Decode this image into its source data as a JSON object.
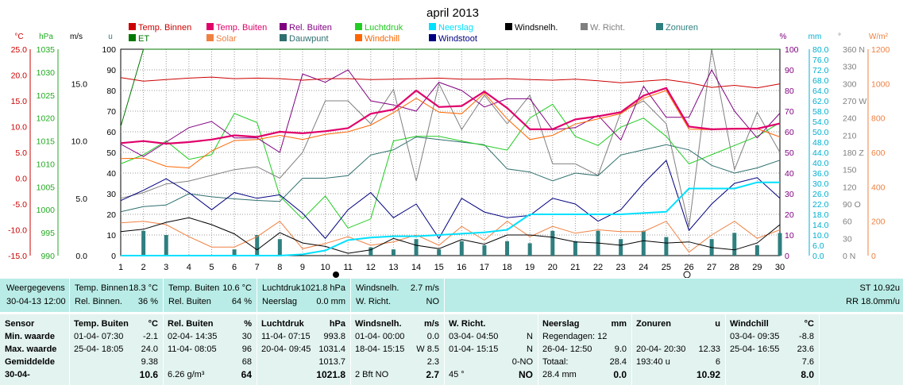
{
  "title": "april 2013",
  "axis_units": {
    "temp": "°C",
    "hpa": "hPa",
    "ms": "m/s",
    "u": "u",
    "pct": "%",
    "mm": "mm",
    "deg": "°",
    "wm2": "W/m²"
  },
  "axes": {
    "temp": [
      "25.0",
      "20.0",
      "15.0",
      "10.0",
      "5.0",
      "0.0",
      "-5.0",
      "-10.0",
      "-15.0"
    ],
    "hpa": [
      "1035",
      "1030",
      "1025",
      "1020",
      "1015",
      "1010",
      "1005",
      "1000",
      "995",
      "990"
    ],
    "ms": [
      "15.0",
      "10.0",
      "5.0",
      "0.0"
    ],
    "u": [
      "100",
      "90",
      "80",
      "70",
      "60",
      "50",
      "40",
      "30",
      "20",
      "10",
      "0"
    ],
    "pct": [
      "100",
      "90",
      "80",
      "70",
      "60",
      "50",
      "40",
      "30",
      "20",
      "10",
      "0"
    ],
    "mm": [
      "80.0",
      "76.0",
      "72.0",
      "68.0",
      "64.0",
      "62.0",
      "58.0",
      "54.0",
      "50.0",
      "48.0",
      "44.0",
      "40.0",
      "36.0",
      "30.0",
      "26.0",
      "22.0",
      "18.0",
      "14.0",
      "10.0",
      "6.0",
      "0.0"
    ],
    "deg": [
      "360 N",
      "330",
      "300",
      "270 W",
      "240",
      "210",
      "180 Z",
      "150",
      "120",
      "90 O",
      "60",
      "30",
      "0 N"
    ],
    "wm2": [
      "1200",
      "1000",
      "800",
      "600",
      "400",
      "200",
      "0"
    ],
    "days": [
      "1",
      "2",
      "3",
      "4",
      "5",
      "6",
      "7",
      "8",
      "9",
      "10",
      "11",
      "12",
      "13",
      "14",
      "15",
      "16",
      "17",
      "18",
      "19",
      "20",
      "21",
      "22",
      "23",
      "24",
      "25",
      "26",
      "27",
      "28",
      "29",
      "30"
    ]
  },
  "legend": [
    {
      "label": "Temp. Binnen",
      "color": "#cc0000"
    },
    {
      "label": "Temp. Buiten",
      "color": "#e0006a"
    },
    {
      "label": "Rel. Buiten",
      "color": "#800080"
    },
    {
      "label": "Luchtdruk",
      "color": "#22cc22"
    },
    {
      "label": "Neerslag",
      "color": "#00e0ff"
    },
    {
      "label": "Windsnelh.",
      "color": "#000000"
    },
    {
      "label": "W. Richt.",
      "color": "#808080"
    },
    {
      "label": "Zonuren",
      "color": "#2f7f7f"
    },
    {
      "label": "ET",
      "color": "#007700"
    },
    {
      "label": "Solar",
      "color": "#f08040"
    },
    {
      "label": "Dauwpunt",
      "color": "#2f6f6f"
    },
    {
      "label": "Windchill",
      "color": "#ff6600"
    },
    {
      "label": "Windstoot",
      "color": "#000080"
    }
  ],
  "chart_data": {
    "type": "line",
    "title": "april 2013",
    "x": [
      1,
      2,
      3,
      4,
      5,
      6,
      7,
      8,
      9,
      10,
      11,
      12,
      13,
      14,
      15,
      16,
      17,
      18,
      19,
      20,
      21,
      22,
      23,
      24,
      25,
      26,
      27,
      28,
      29,
      30
    ],
    "x_range": [
      1,
      30
    ],
    "grid": true,
    "series": [
      {
        "name": "Temp. Binnen",
        "unit": "°C",
        "color": "#cc0000",
        "values": [
          19.5,
          18.8,
          19.1,
          19.4,
          19.6,
          19.3,
          19.4,
          19.3,
          19.0,
          19.3,
          19.3,
          19.1,
          19.2,
          19.3,
          19.4,
          19.2,
          19.2,
          19.3,
          19.1,
          19.0,
          19.2,
          18.9,
          18.5,
          18.8,
          19.1,
          18.5,
          17.6,
          18.0,
          17.5,
          18.3
        ]
      },
      {
        "name": "Temp. Buiten",
        "unit": "°C",
        "color": "#e0006a",
        "values": [
          6.8,
          7.2,
          6.7,
          7.0,
          7.5,
          8.3,
          8.0,
          9.0,
          8.7,
          9.1,
          9.7,
          12.5,
          13.3,
          17.0,
          13.8,
          14.0,
          16.8,
          13.6,
          9.5,
          9.5,
          11.4,
          12.0,
          12.8,
          16.0,
          17.5,
          10.0,
          9.5,
          9.6,
          9.6,
          10.6
        ]
      },
      {
        "name": "Rel. Buiten",
        "unit": "%",
        "color": "#800080",
        "values": [
          54,
          48,
          55,
          62,
          65,
          57,
          57,
          50,
          88,
          84,
          90,
          75,
          73,
          70,
          84,
          80,
          72,
          76,
          76,
          61,
          62,
          68,
          56,
          82,
          67,
          67,
          90,
          70,
          57,
          69
        ]
      },
      {
        "name": "Luchtdruk",
        "unit": "hPa",
        "color": "#22cc22",
        "values": [
          1010,
          1012,
          1015,
          1011,
          1012,
          1021,
          1019,
          1003,
          998,
          1003,
          996,
          998,
          1015,
          1016,
          1016,
          1015,
          1014,
          1013,
          1020,
          1023,
          1016,
          1014,
          1018,
          1020,
          1016,
          1010,
          1012,
          1014,
          1016,
          1019
        ]
      },
      {
        "name": "Neerslag",
        "unit": "mm",
        "color": "#00e0ff",
        "values": [
          0,
          0,
          0,
          0,
          0,
          0,
          0,
          0,
          0.5,
          2.0,
          6.0,
          7.0,
          7.5,
          7.5,
          8.0,
          8.5,
          9.0,
          10.0,
          16.0,
          16.0,
          16.0,
          16.0,
          16.0,
          16.5,
          17.0,
          26.0,
          26.0,
          26.0,
          28.4,
          28.4
        ]
      },
      {
        "name": "Windsnelh.",
        "unit": "m/s",
        "color": "#000000",
        "values": [
          2.1,
          2.3,
          2.9,
          3.3,
          2.7,
          1.9,
          0.5,
          2.0,
          1.1,
          0.8,
          0.2,
          0.5,
          1.5,
          0.9,
          0.6,
          1.4,
          1.0,
          1.8,
          1.8,
          1.6,
          1.2,
          1.1,
          0.9,
          1.3,
          1.1,
          1.2,
          0.7,
          0.5,
          1.1,
          2.7
        ]
      },
      {
        "name": "W. Richt.",
        "unit": "°",
        "color": "#808080",
        "values": [
          100,
          110,
          125,
          130,
          140,
          150,
          155,
          135,
          180,
          270,
          270,
          230,
          290,
          130,
          300,
          220,
          280,
          230,
          280,
          160,
          160,
          140,
          250,
          270,
          230,
          50,
          360,
          150,
          250,
          180
        ]
      },
      {
        "name": "Zonuren",
        "unit": "u",
        "color": "#2f7f7f",
        "values": [
          0,
          12,
          10,
          0,
          0,
          3,
          10,
          8,
          0,
          0,
          0,
          4,
          3,
          8,
          3,
          7,
          5,
          7,
          6,
          12,
          7,
          12,
          8,
          12,
          9,
          0,
          8,
          11,
          5,
          10.92
        ]
      },
      {
        "name": "ET",
        "unit": "mm",
        "color": "#007700",
        "values": [
          50,
          80,
          80,
          80,
          80,
          80,
          80,
          80,
          80,
          80,
          80,
          80,
          80,
          80,
          80,
          80,
          80,
          80,
          80,
          80,
          80,
          80,
          80,
          80,
          80,
          80,
          80,
          80,
          80,
          80
        ]
      },
      {
        "name": "Solar",
        "unit": "W/m²",
        "color": "#f08040",
        "values": [
          190,
          200,
          180,
          110,
          50,
          50,
          110,
          200,
          40,
          70,
          110,
          60,
          80,
          120,
          60,
          170,
          90,
          200,
          110,
          170,
          130,
          150,
          140,
          140,
          200,
          20,
          120,
          200,
          100,
          150
        ]
      },
      {
        "name": "Dauwpunt",
        "unit": "°C",
        "color": "#2f6f6f",
        "values": [
          -6.5,
          -5.5,
          -5.2,
          -3.0,
          -3.6,
          -4.0,
          -4.3,
          -4.5,
          0.0,
          0.0,
          0.5,
          4.5,
          5.5,
          8.0,
          7.5,
          7.0,
          6.5,
          1.8,
          1.2,
          -0.5,
          1.0,
          0.5,
          4.5,
          5.5,
          6.5,
          5.5,
          2.5,
          1.0,
          2.0,
          3.5
        ]
      },
      {
        "name": "Windchill",
        "unit": "°C",
        "color": "#ff6600",
        "values": [
          3.8,
          3.9,
          2.3,
          2.0,
          5.3,
          7.3,
          7.5,
          8.3,
          7.5,
          8.5,
          9.0,
          10.3,
          12.7,
          15.5,
          12.8,
          12.5,
          16.5,
          11.5,
          7.5,
          8.3,
          10.5,
          11.5,
          12.5,
          15.5,
          17.0,
          9.5,
          9.4,
          9.5,
          9.6,
          8.0
        ]
      },
      {
        "name": "Windstoot",
        "unit": "m/s",
        "color": "#000080",
        "values": [
          4.8,
          5.7,
          6.7,
          5.5,
          4.0,
          5.5,
          5.0,
          5.3,
          3.7,
          1.5,
          4.0,
          5.5,
          3.3,
          4.5,
          1.5,
          5.0,
          3.8,
          3.3,
          3.5,
          5.0,
          4.5,
          3.0,
          4.0,
          6.3,
          8.3,
          2.2,
          4.5,
          6.3,
          6.8,
          5.0
        ]
      }
    ]
  },
  "current": {
    "weergegevens": "Weergegevens",
    "datetime": "30-04-13 12:00",
    "tb_label": "Temp. Binnen",
    "tb_val": "18.3 °C",
    "rb_label": "Rel. Binnen.",
    "rb_val": "36 %",
    "tbu_label": "Temp. Buiten",
    "tbu_val": "10.6 °C",
    "rbu_label": "Rel. Buiten",
    "rbu_val": "64 %",
    "ld_label": "Luchtdruk",
    "ld_val": "1021.8 hPa",
    "ns_label": "Neerslag",
    "ns_val": "0.0 mm",
    "ws_label": "Windsnelh.",
    "ws_val": "2.7 m/s",
    "wr_label": "W. Richt.",
    "wr_val": "NO",
    "st": "ST 10.92u",
    "rr": "RR 18.0mm/u"
  },
  "stats": {
    "sensor": "Sensor",
    "min": "Min. waarde",
    "max": "Max. waarde",
    "avg": "Gemiddelde",
    "date": "30-04-",
    "c1": {
      "h": "Temp. Buiten",
      "u": "°C",
      "min_t": "01-04- 07:30",
      "min": "-2.1",
      "max_t": "25-04- 18:05",
      "max": "24.0",
      "avg": "9.38",
      "cur": "10.6"
    },
    "c2": {
      "h": "Rel. Buiten",
      "u": "%",
      "min_t": "02-04- 14:35",
      "min": "30",
      "max_t": "11-04- 08:05",
      "max": "96",
      "avg": "68",
      "extra": "6.26 g/m³",
      "cur": "64"
    },
    "c3": {
      "h": "Luchtdruk",
      "u": "hPa",
      "min_t": "11-04- 07:15",
      "min": "993.8",
      "max_t": "20-04- 09:45",
      "max": "1031.4",
      "avg": "1013.7",
      "cur": "1021.8"
    },
    "c4": {
      "h": "Windsnelh.",
      "u": "m/s",
      "min_t": "01-04- 00:00",
      "min": "0.0",
      "max_t": "18-04- 15:15",
      "max": "W 8.5",
      "avg": "2.3",
      "extra": "2 Bft NO",
      "cur": "2.7"
    },
    "c5": {
      "h": "W. Richt.",
      "min_t": "03-04- 04:50",
      "min": "N",
      "max_t": "01-04- 15:15",
      "max": "N",
      "avg": "0-NO",
      "extra": "45 °",
      "cur": "NO"
    },
    "c6": {
      "h": "Neerslag",
      "u": "mm",
      "l1": "Regendagen: 12",
      "l2": "26-04- 12:50",
      "l2v": "9.0",
      "l3": "Totaal:",
      "l3v": "28.4",
      "extra": "28.4 mm",
      "cur": "0.0"
    },
    "c7": {
      "h": "Zonuren",
      "u": "u",
      "l2": "20-04- 20:30",
      "l2v": "12.33",
      "l3": "193:40 u",
      "l3v": "6",
      "cur": "10.92"
    },
    "c8": {
      "h": "Windchill",
      "u": "°C",
      "min_t": "03-04- 09:35",
      "min": "-8.8",
      "max_t": "25-04- 16:55",
      "max": "23.6",
      "avg": "7.6",
      "cur": "8.0"
    }
  }
}
